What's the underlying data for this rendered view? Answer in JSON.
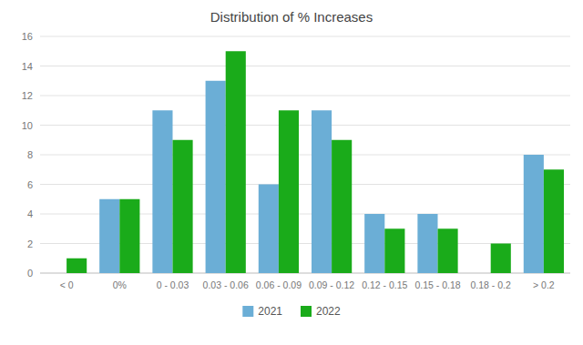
{
  "chart_data": {
    "type": "bar",
    "title": "Distribution of % Increases",
    "categories": [
      "< 0",
      "0%",
      "0 - 0.03",
      "0.03 - 0.06",
      "0.06 - 0.09",
      "0.09 - 0.12",
      "0.12 - 0.15",
      "0.15 - 0.18",
      "0.18 - 0.2",
      "> 0.2"
    ],
    "series": [
      {
        "name": "2021",
        "color": "#6baed6",
        "values": [
          0,
          5,
          11,
          13,
          6,
          11,
          4,
          4,
          0,
          8
        ]
      },
      {
        "name": "2022",
        "color": "#1aab1a",
        "values": [
          1,
          5,
          9,
          15,
          11,
          9,
          3,
          3,
          2,
          7
        ]
      }
    ],
    "ylim": [
      0,
      16
    ],
    "yticks": [
      0,
      2,
      4,
      6,
      8,
      10,
      12,
      14,
      16
    ],
    "grid": true,
    "legend": "bottom"
  }
}
